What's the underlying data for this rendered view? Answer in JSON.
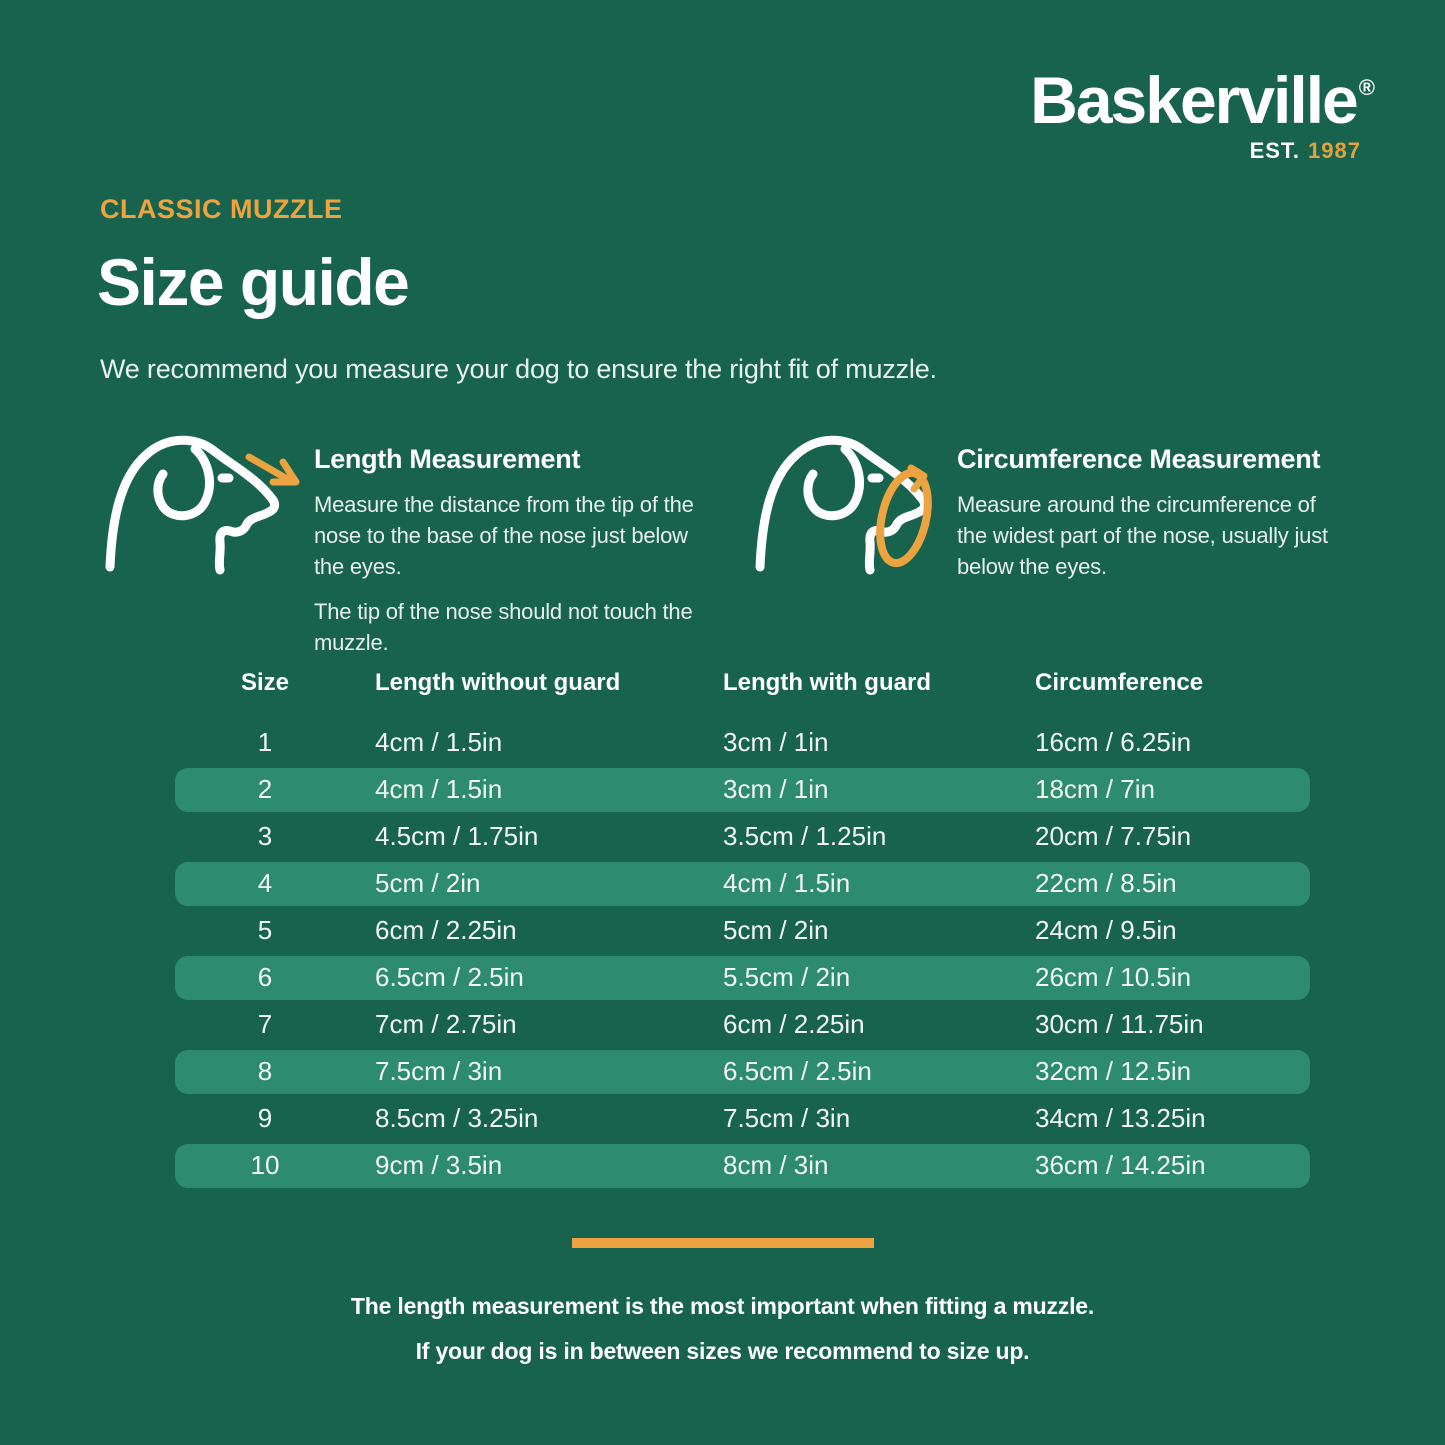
{
  "colors": {
    "background": "#17634E",
    "row_highlight": "#2D8C6E",
    "accent_orange": "#EDA33F",
    "text_primary": "#FFFFFF",
    "text_body": "#E8F0EC"
  },
  "logo": {
    "brand": "Baskerville",
    "registered_mark": "®",
    "established": "EST.",
    "year": "1987"
  },
  "header": {
    "eyebrow": "CLASSIC MUZZLE",
    "title": "Size guide",
    "intro": "We recommend you measure your dog to ensure the right fit of muzzle."
  },
  "measurements": {
    "length": {
      "title": "Length Measurement",
      "para1": "Measure the distance from the tip of the\nnose to the base of the nose just below\nthe eyes.",
      "para2": "The tip of the nose should not touch the\nmuzzle."
    },
    "circumference": {
      "title": "Circumference Measurement",
      "para1": "Measure around the circumference of\nthe widest part of the nose, usually just\nbelow the eyes."
    }
  },
  "size_table": {
    "columns": [
      "Size",
      "Length without guard",
      "Length with guard",
      "Circumference"
    ],
    "rows": [
      {
        "size": "1",
        "length_without_guard": "4cm / 1.5in",
        "length_with_guard": "3cm / 1in",
        "circumference": "16cm / 6.25in",
        "highlighted": false
      },
      {
        "size": "2",
        "length_without_guard": "4cm / 1.5in",
        "length_with_guard": "3cm / 1in",
        "circumference": "18cm / 7in",
        "highlighted": true
      },
      {
        "size": "3",
        "length_without_guard": "4.5cm / 1.75in",
        "length_with_guard": "3.5cm / 1.25in",
        "circumference": "20cm / 7.75in",
        "highlighted": false
      },
      {
        "size": "4",
        "length_without_guard": "5cm / 2in",
        "length_with_guard": "4cm / 1.5in",
        "circumference": "22cm / 8.5in",
        "highlighted": true
      },
      {
        "size": "5",
        "length_without_guard": "6cm / 2.25in",
        "length_with_guard": "5cm / 2in",
        "circumference": "24cm / 9.5in",
        "highlighted": false
      },
      {
        "size": "6",
        "length_without_guard": "6.5cm / 2.5in",
        "length_with_guard": "5.5cm / 2in",
        "circumference": "26cm / 10.5in",
        "highlighted": true
      },
      {
        "size": "7",
        "length_without_guard": "7cm / 2.75in",
        "length_with_guard": "6cm / 2.25in",
        "circumference": "30cm / 11.75in",
        "highlighted": false
      },
      {
        "size": "8",
        "length_without_guard": "7.5cm / 3in",
        "length_with_guard": "6.5cm / 2.5in",
        "circumference": "32cm / 12.5in",
        "highlighted": true
      },
      {
        "size": "9",
        "length_without_guard": "8.5cm / 3.25in",
        "length_with_guard": "7.5cm / 3in",
        "circumference": "34cm / 13.25in",
        "highlighted": false
      },
      {
        "size": "10",
        "length_without_guard": "9cm / 3.5in",
        "length_with_guard": "8cm / 3in",
        "circumference": "36cm / 14.25in",
        "highlighted": true
      }
    ]
  },
  "footer": {
    "line1": "The length measurement is the most important when fitting a muzzle.",
    "line2": "If your dog is in between sizes we recommend to size up."
  }
}
